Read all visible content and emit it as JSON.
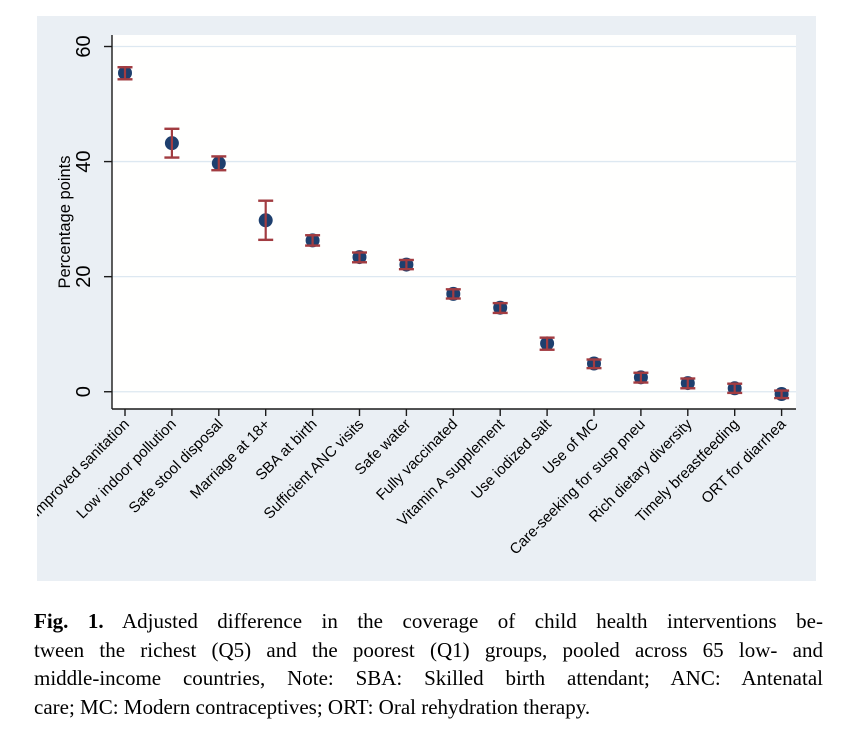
{
  "chart_data": {
    "type": "scatter",
    "title": "",
    "xlabel": "",
    "ylabel": "Percentage points",
    "ylim": [
      -3,
      62
    ],
    "yticks": [
      0,
      20,
      40,
      60
    ],
    "grid": true,
    "legend": "none",
    "marker": "filled-circle",
    "error_bars": "capped-vertical",
    "categories": [
      "Improved sanitation",
      "Low indoor pollution",
      "Safe stool disposal",
      "Marriage at 18+",
      "SBA at birth",
      "Sufficient ANC visits",
      "Safe water",
      "Fully vaccinated",
      "Vitamin A supplement",
      "Use iodized salt",
      "Use of MC",
      "Care-seeking for susp pneu",
      "Rich dietary diversity",
      "Timely breastfeeding",
      "ORT for diarrhea"
    ],
    "series": [
      {
        "name": "Adjusted difference Q5 minus Q1 (percentage points)",
        "values": [
          55.4,
          43.2,
          39.7,
          29.8,
          26.3,
          23.4,
          22.1,
          17.0,
          14.6,
          8.4,
          4.9,
          2.5,
          1.5,
          0.6,
          -0.4
        ],
        "ci_low": [
          54.3,
          40.7,
          38.5,
          26.4,
          25.4,
          22.5,
          21.3,
          16.2,
          13.7,
          7.3,
          4.1,
          1.6,
          0.6,
          -0.2,
          -1.1
        ],
        "ci_high": [
          56.4,
          45.7,
          40.9,
          33.2,
          27.2,
          24.2,
          22.9,
          17.8,
          15.4,
          9.4,
          5.6,
          3.3,
          2.3,
          1.4,
          0.2
        ]
      }
    ],
    "colors": {
      "marker": "#1e3f6e",
      "error_bar": "#a23c41",
      "outer_bg": "#eaeff4",
      "plot_bg": "#fffffe",
      "gridline": "#dde8f1",
      "axis": "#1a1a1a"
    }
  },
  "caption": {
    "bold_prefix": "Fig. 1.",
    "line1_rest": " Adjusted difference in the coverage of child health interventions be-",
    "line2": "tween the richest (Q5) and the poorest (Q1) groups, pooled across 65 low- and",
    "line3": "middle-income countries, Note: SBA: Skilled birth attendant; ANC: Antenatal",
    "line4": "care; MC: Modern contraceptives; ORT: Oral rehydration therapy."
  }
}
